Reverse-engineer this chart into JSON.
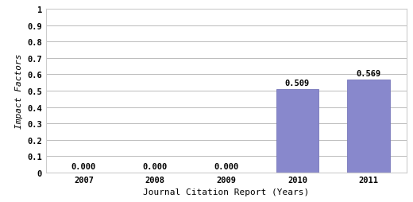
{
  "categories": [
    "2007",
    "2008",
    "2009",
    "2010",
    "2011"
  ],
  "values": [
    0.0,
    0.0,
    0.0,
    0.509,
    0.569
  ],
  "bar_color": "#8888cc",
  "bar_edge_color": "#7777bb",
  "xlabel": "Journal Citation Report (Years)",
  "ylabel": "Impact Factors",
  "ylim": [
    0,
    1.0
  ],
  "yticks": [
    0,
    0.1,
    0.2,
    0.3,
    0.4,
    0.5,
    0.6,
    0.7,
    0.8,
    0.9,
    1
  ],
  "ytick_labels": [
    "0",
    "0.1",
    "0.2",
    "0.3",
    "0.4",
    "0.5",
    "0.6",
    "0.7",
    "0.8",
    "0.9",
    "1"
  ],
  "bar_labels": [
    "0.000",
    "0.000",
    "0.000",
    "0.509",
    "0.569"
  ],
  "outer_bg_color": "#ffffff",
  "plot_bg_color": "#ffffff",
  "border_color": "#cccccc",
  "grid_color": "#bbbbbb",
  "label_fontsize": 7.5,
  "axis_label_fontsize": 8,
  "tick_fontsize": 7.5,
  "bar_width": 0.6
}
